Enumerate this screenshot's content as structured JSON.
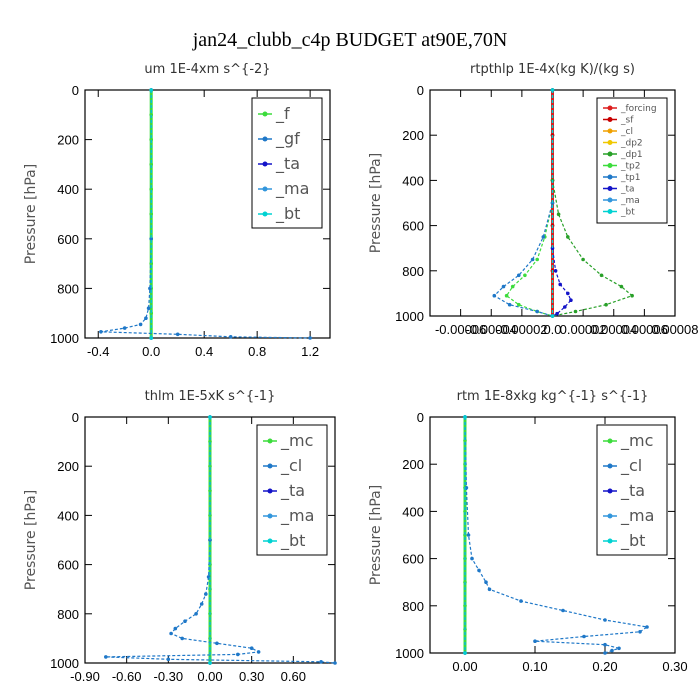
{
  "title": "jan24_clubb_c4p  BUDGET at90E,70N",
  "ylabel": "Pressure [hPa]",
  "chart_data": [
    {
      "type": "line",
      "title": "um   1E-4xm s^{-2}",
      "xlim": [
        -0.5,
        1.35
      ],
      "ylim": [
        1000,
        0
      ],
      "xticks": [
        -0.4,
        0.0,
        0.4,
        0.8,
        1.2
      ],
      "xticklabels": [
        "-0.4",
        "0.0",
        "0.4",
        "0.8",
        "1.2"
      ],
      "yticks": [
        0,
        200,
        400,
        600,
        800,
        1000
      ],
      "legend": "top-right",
      "series": [
        {
          "name": "_f",
          "color": "#3cdc3c",
          "y": [
            0,
            100,
            200,
            300,
            400,
            500,
            600,
            700,
            800,
            900,
            1000
          ],
          "x": [
            0,
            0,
            0,
            0,
            0,
            0,
            0,
            0,
            0,
            0,
            0
          ]
        },
        {
          "name": "_gf",
          "color": "#1f78c8",
          "y": [
            0,
            600,
            800,
            880,
            920,
            945,
            960,
            975,
            985,
            995,
            1000
          ],
          "x": [
            0,
            0,
            -0.01,
            -0.02,
            -0.04,
            -0.08,
            -0.2,
            -0.38,
            0.2,
            0.6,
            1.2
          ]
        },
        {
          "name": "_ta",
          "color": "#1414c8",
          "y": [
            0,
            1000
          ],
          "x": [
            0,
            0
          ]
        },
        {
          "name": "_ma",
          "color": "#3296dc",
          "y": [
            0,
            1000
          ],
          "x": [
            0,
            0
          ]
        },
        {
          "name": "_bt",
          "color": "#00d2d2",
          "y": [
            0,
            1000
          ],
          "x": [
            0,
            0
          ]
        }
      ]
    },
    {
      "type": "line",
      "title": "rtpthlp   1E-4x(kg K)/(kg s)",
      "xlim": [
        -8e-05,
        8e-05
      ],
      "ylim": [
        1000,
        0
      ],
      "xticks": [
        -6e-05,
        -4e-05,
        -2e-05,
        0.0,
        2e-05,
        4e-05,
        6e-05,
        8e-05
      ],
      "xticklabels": [
        "-0.00006",
        "-0.00004",
        "-0.00002",
        "0.0",
        "0.00002",
        "0.00004",
        "0.00006",
        "0.00008"
      ],
      "yticks": [
        0,
        200,
        400,
        600,
        800,
        1000
      ],
      "legend": "top-right",
      "series": [
        {
          "name": "_forcing",
          "color": "#dc1e1e",
          "y": [
            0,
            200,
            400,
            600,
            800,
            1000
          ],
          "x": [
            0,
            0,
            0,
            0,
            0,
            0
          ]
        },
        {
          "name": "_sf",
          "color": "#c80000",
          "y": [
            0,
            200,
            400,
            600,
            800,
            1000
          ],
          "x": [
            0,
            0,
            0,
            0,
            0,
            0
          ]
        },
        {
          "name": "_cl",
          "color": "#f0a000",
          "y": [
            0,
            1000
          ],
          "x": [
            0,
            0
          ]
        },
        {
          "name": "_dp2",
          "color": "#f0c800",
          "y": [
            0,
            1000
          ],
          "x": [
            0,
            0
          ]
        },
        {
          "name": "_dp1",
          "color": "#28a028",
          "y": [
            0,
            400,
            550,
            650,
            750,
            820,
            870,
            910,
            950,
            980,
            1000
          ],
          "x": [
            0,
            0,
            4e-06,
            1e-05,
            2e-05,
            3.2e-05,
            4.5e-05,
            5.2e-05,
            3.5e-05,
            1.5e-05,
            0
          ]
        },
        {
          "name": "_tp2",
          "color": "#3cdc3c",
          "y": [
            0,
            500,
            650,
            750,
            820,
            870,
            910,
            950,
            980,
            1000
          ],
          "x": [
            0,
            0,
            -5e-06,
            -1e-05,
            -1.8e-05,
            -2.6e-05,
            -3e-05,
            -2.2e-05,
            -1e-05,
            0
          ]
        },
        {
          "name": "_tp1",
          "color": "#1f78c8",
          "y": [
            0,
            500,
            650,
            750,
            820,
            870,
            910,
            950,
            980,
            1000
          ],
          "x": [
            0,
            0,
            -6e-06,
            -1.3e-05,
            -2.2e-05,
            -3.2e-05,
            -3.8e-05,
            -2.8e-05,
            -1e-05,
            0
          ]
        },
        {
          "name": "_ta",
          "color": "#1414c8",
          "y": [
            0,
            700,
            800,
            860,
            900,
            930,
            960,
            990,
            1000
          ],
          "x": [
            0,
            0,
            2e-06,
            5e-06,
            1e-05,
            1.2e-05,
            8e-06,
            3e-06,
            0
          ]
        },
        {
          "name": "_ma",
          "color": "#3296dc",
          "y": [
            0,
            1000
          ],
          "x": [
            0,
            0
          ]
        },
        {
          "name": "_bt",
          "color": "#00d2d2",
          "y": [
            0,
            1000
          ],
          "x": [
            0,
            0
          ]
        }
      ]
    },
    {
      "type": "line",
      "title": "thlm   1E-5xK s^{-1}",
      "xlim": [
        -0.9,
        0.9
      ],
      "ylim": [
        1000,
        0
      ],
      "xticks": [
        -0.9,
        -0.6,
        -0.3,
        0.0,
        0.3,
        0.6
      ],
      "xticklabels": [
        "-0.90",
        "-0.60",
        "-0.30",
        "0.00",
        "0.30",
        "0.60"
      ],
      "yticks": [
        0,
        200,
        400,
        600,
        800,
        1000
      ],
      "legend": "top-right",
      "series": [
        {
          "name": "_mc",
          "color": "#3cdc3c",
          "y": [
            0,
            100,
            200,
            300,
            400,
            500,
            600,
            700,
            800,
            900,
            1000
          ],
          "x": [
            0,
            0,
            0,
            0,
            0,
            0,
            0,
            0,
            0,
            0,
            0
          ]
        },
        {
          "name": "_cl",
          "color": "#1f78c8",
          "y": [
            0,
            500,
            650,
            720,
            760,
            800,
            830,
            860,
            880,
            900,
            920,
            940,
            955,
            965,
            975,
            985,
            995,
            1000
          ],
          "x": [
            0,
            0,
            -0.01,
            -0.03,
            -0.06,
            -0.1,
            -0.18,
            -0.25,
            -0.28,
            -0.2,
            0.05,
            0.3,
            0.35,
            0.2,
            -0.75,
            -0.3,
            0.8,
            0.9
          ]
        },
        {
          "name": "_ta",
          "color": "#1414c8",
          "y": [
            0,
            1000
          ],
          "x": [
            0,
            0
          ]
        },
        {
          "name": "_ma",
          "color": "#3296dc",
          "y": [
            0,
            1000
          ],
          "x": [
            0,
            0
          ]
        },
        {
          "name": "_bt",
          "color": "#00d2d2",
          "y": [
            0,
            1000
          ],
          "x": [
            0,
            0
          ]
        }
      ]
    },
    {
      "type": "line",
      "title": "rtm   1E-8xkg kg^{-1} s^{-1}",
      "xlim": [
        -0.05,
        0.3
      ],
      "ylim": [
        1000,
        0
      ],
      "xticks": [
        0.0,
        0.1,
        0.2,
        0.3
      ],
      "xticklabels": [
        "0.00",
        "0.10",
        "0.20",
        "0.30"
      ],
      "yticks": [
        0,
        200,
        400,
        600,
        800,
        1000
      ],
      "legend": "top-right",
      "series": [
        {
          "name": "_mc",
          "color": "#3cdc3c",
          "y": [
            0,
            100,
            200,
            300,
            400,
            500,
            600,
            700,
            800,
            900,
            1000
          ],
          "x": [
            0,
            0,
            0,
            0,
            0,
            0,
            0,
            0,
            0,
            0,
            0
          ]
        },
        {
          "name": "_cl",
          "color": "#1f78c8",
          "y": [
            0,
            300,
            500,
            600,
            650,
            700,
            730,
            780,
            820,
            860,
            890,
            910,
            930,
            950,
            965,
            980,
            990,
            1000
          ],
          "x": [
            0,
            0.002,
            0.005,
            0.01,
            0.02,
            0.03,
            0.035,
            0.08,
            0.14,
            0.2,
            0.26,
            0.25,
            0.17,
            0.1,
            0.2,
            0.22,
            0.21,
            0.2
          ]
        },
        {
          "name": "_ta",
          "color": "#1414c8",
          "y": [
            0,
            1000
          ],
          "x": [
            0,
            0
          ]
        },
        {
          "name": "_ma",
          "color": "#3296dc",
          "y": [
            0,
            1000
          ],
          "x": [
            0,
            0
          ]
        },
        {
          "name": "_bt",
          "color": "#00d2d2",
          "y": [
            0,
            1000
          ],
          "x": [
            0,
            0
          ]
        }
      ]
    }
  ]
}
